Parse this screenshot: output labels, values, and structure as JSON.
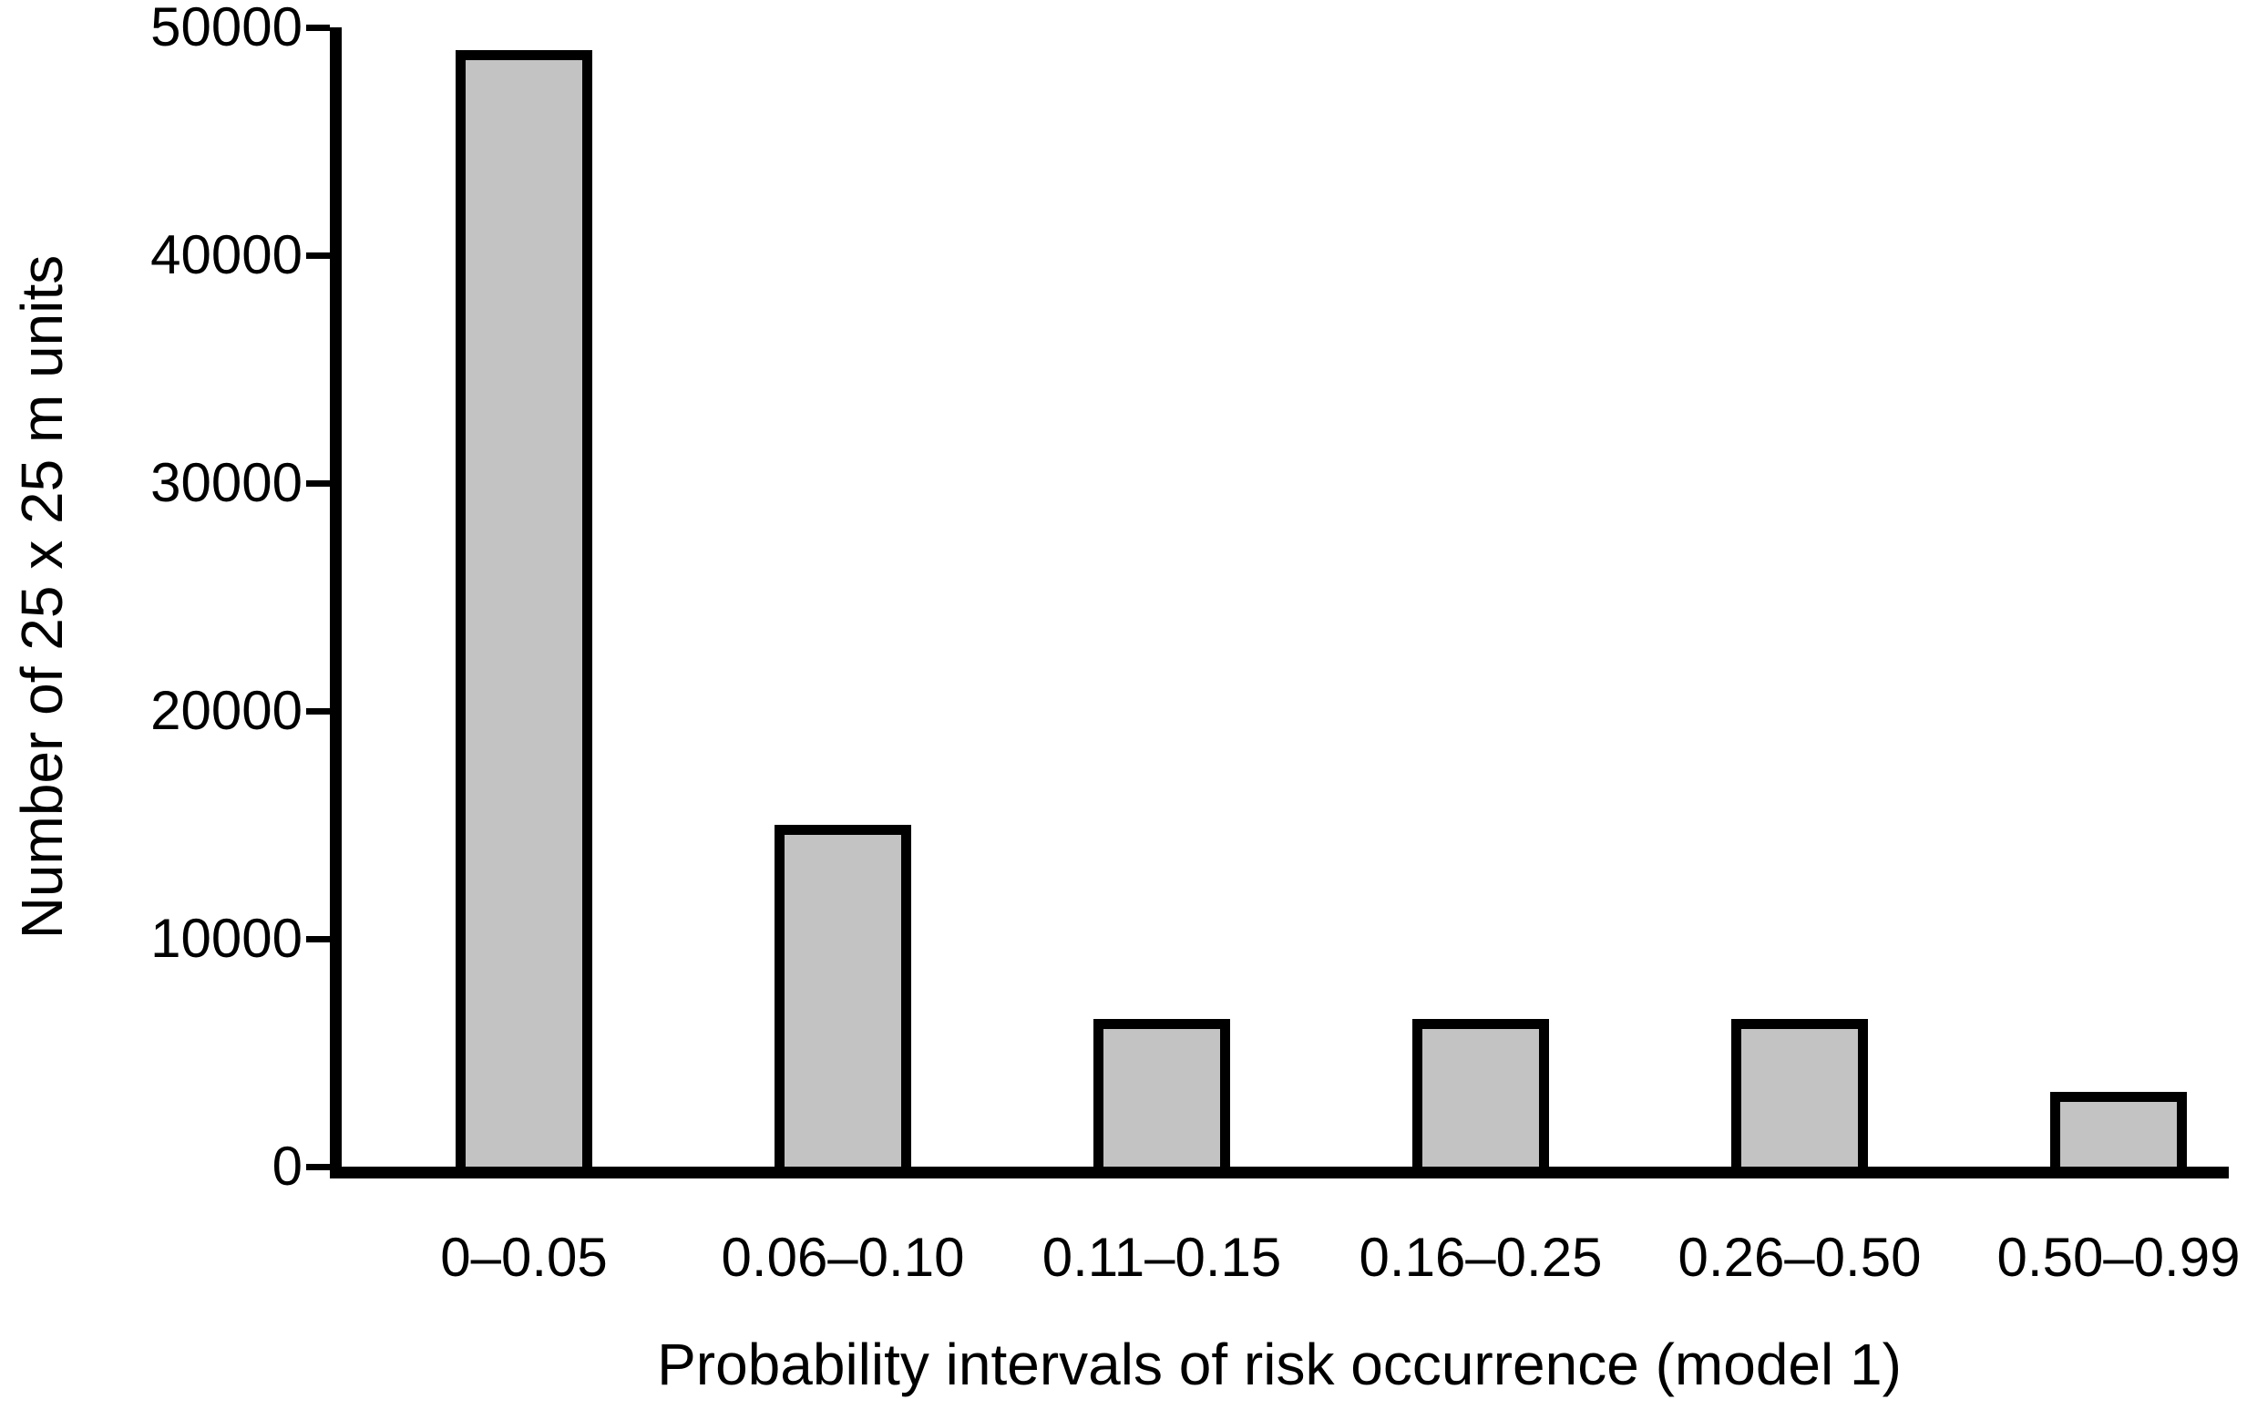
{
  "chart_data": {
    "type": "bar",
    "title": "",
    "categories": [
      "0–0.05",
      "0.06–0.10",
      "0.11–0.15",
      "0.16–0.25",
      "0.26–0.50",
      "0.50–0.99"
    ],
    "values": [
      49000,
      15000,
      6500,
      6500,
      6500,
      3300
    ],
    "xlabel": "Probability intervals of risk occurrence (model 1)",
    "ylabel": "Number of 25 x 25 m units",
    "ylim": [
      0,
      50000
    ],
    "yticks": [
      0,
      10000,
      20000,
      30000,
      40000,
      50000
    ],
    "grid": false,
    "legend": null,
    "colors": {
      "bar_fill": "#c3c3c3",
      "bar_border": "#000000",
      "axis": "#000000",
      "text": "#000000",
      "background": "#ffffff"
    }
  }
}
